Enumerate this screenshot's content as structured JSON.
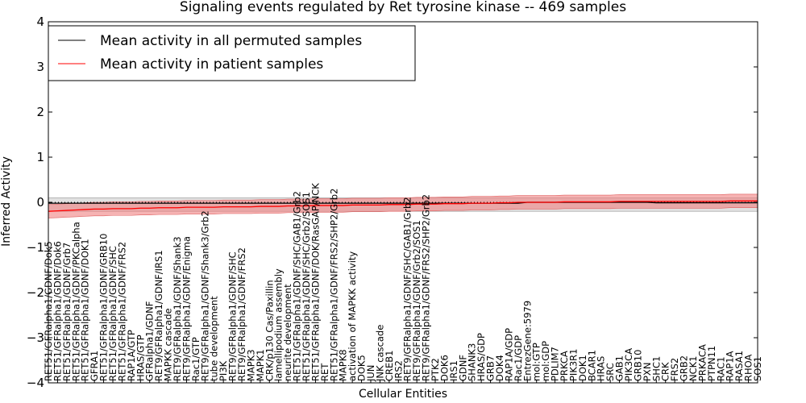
{
  "chart_data": {
    "type": "line",
    "title": "Signaling events regulated by Ret tyrosine kinase -- 469 samples",
    "xlabel": "Cellular Entities",
    "ylabel": "Inferred Activity",
    "ylim": [
      -4,
      4
    ],
    "yticks": [
      -4,
      -3,
      -2,
      -1,
      0,
      1,
      2,
      3,
      4
    ],
    "categories": [
      "RET51/GFRalpha1/GDNF/Dok5",
      "RET51/GFRalpha1/GDNF/Dok6",
      "RET51/GFRalpha1/GDNF/Grb7",
      "RET51/GFRalpha1/GDNF/PKCalpha",
      "RET51/GFRalpha1/GDNF/DOK1",
      "GFRA1",
      "RET51/GFRalpha1/GDNF/GRB10",
      "RET51/GFRalpha1/GDNF/SHC",
      "RET51/GFRalpha1/GDNF/FRS2",
      "RAP1A/GTP",
      "HRAS/GTP",
      "GFRalpha1/GDNF",
      "RET9/GFRalpha1/GDNF/IRS1",
      "MAPKK cascade",
      "RET9/GFRalpha1/GDNF/Shank3",
      "RET9/GFRalpha1/GDNF/Enigma",
      "Rac1/GTP",
      "RET9/GFRalpha1/GDNF/Shank3/Grb2",
      "tube development",
      "PI3K",
      "RET9/GFRalpha1/GDNF/SHC",
      "RET9/GFRalpha1/GDNF/FRS2",
      "MAPK3",
      "MAPK1",
      "CRK/p130 Cas/Paxillin",
      "lamellipodium assembly",
      "neurite development",
      "RET51/GFRalpha1/GDNF/SHC/GAB1/Grb2",
      "RET51/GFRalpha1/GDNF/SHC/Grb2/SOS1",
      "RET51/GFRalpha1/GDNF/DOK/RasGAP/NCK",
      "RET",
      "RET51/GFRalpha1/GDNF/FRS2/SHP2/Grb2",
      "MAPK8",
      "activation of MAPKK activity",
      "DOK5",
      "JUN",
      "JNK cascade",
      "CREB1",
      "IRS2",
      "RET9/GFRalpha1/GDNF/SHC/GAB1/Grb2",
      "RET9/GFRalpha1/GDNF/Grb2/SOS1",
      "RET9/GFRalpha1/GDNF/FRS2/SHP2/Grb2",
      "PTK2",
      "DOK6",
      "IRS1",
      "GDNF",
      "SHANK3",
      "HRAS/GDP",
      "GRB7",
      "DOK4",
      "RAP1A/GDP",
      "Rac1/GDP",
      "EntrezGene:5979",
      "mol:GTP",
      "mol:GDP",
      "PDLIM7",
      "PRKCA",
      "PIK3R1",
      "DOK1",
      "BCAR1",
      "HRAS",
      "SRC",
      "GAB1",
      "PIK3CA",
      "GRB10",
      "PXN",
      "SHC1",
      "CRK",
      "FRS2",
      "GRB2",
      "NCK1",
      "PRKACA",
      "PTPN11",
      "RAC1",
      "RAP1A",
      "RASA1",
      "RHOA",
      "SOS1"
    ],
    "series": [
      {
        "name": "Mean activity in all permuted samples",
        "color": "#000000",
        "values": [
          -0.02,
          -0.02,
          -0.02,
          -0.02,
          -0.02,
          -0.02,
          -0.02,
          -0.02,
          -0.02,
          -0.02,
          -0.02,
          -0.02,
          -0.02,
          -0.02,
          -0.02,
          -0.02,
          -0.02,
          -0.02,
          -0.02,
          -0.02,
          -0.02,
          -0.02,
          -0.02,
          -0.02,
          -0.02,
          -0.02,
          -0.02,
          -0.02,
          -0.02,
          -0.02,
          -0.02,
          -0.02,
          -0.02,
          -0.02,
          -0.02,
          -0.02,
          -0.02,
          -0.02,
          -0.02,
          -0.02,
          -0.02,
          -0.02,
          -0.02,
          -0.02,
          -0.02,
          -0.02,
          -0.02,
          -0.02,
          -0.02,
          -0.02,
          -0.02,
          -0.02,
          0,
          0,
          0,
          0,
          0,
          0,
          0,
          0,
          0,
          0,
          0,
          0,
          0,
          0,
          -0.01,
          -0.01,
          -0.01,
          -0.01,
          -0.01,
          -0.01,
          -0.01,
          -0.01,
          -0.01,
          -0.01,
          -0.01,
          -0.01
        ]
      },
      {
        "name": "Mean activity in patient samples",
        "color": "#ff0000",
        "values": [
          -0.2,
          -0.19,
          -0.18,
          -0.17,
          -0.16,
          -0.15,
          -0.15,
          -0.14,
          -0.14,
          -0.14,
          -0.13,
          -0.13,
          -0.12,
          -0.12,
          -0.12,
          -0.11,
          -0.11,
          -0.11,
          -0.11,
          -0.1,
          -0.1,
          -0.1,
          -0.1,
          -0.09,
          -0.09,
          -0.09,
          -0.08,
          -0.08,
          -0.08,
          -0.07,
          -0.07,
          -0.07,
          -0.07,
          -0.06,
          -0.06,
          -0.06,
          -0.06,
          -0.05,
          -0.05,
          -0.05,
          -0.04,
          -0.04,
          -0.04,
          -0.03,
          -0.03,
          -0.03,
          -0.02,
          -0.02,
          -0.02,
          -0.01,
          -0.01,
          0,
          0,
          0,
          0,
          0,
          0.01,
          0.01,
          0.01,
          0.01,
          0.01,
          0.01,
          0.02,
          0.02,
          0.02,
          0.02,
          0.02,
          0.02,
          0.02,
          0.02,
          0.02,
          0.02,
          0.02,
          0.02,
          0.03,
          0.03,
          0.03,
          0.03
        ]
      }
    ],
    "permuted_band": {
      "lower": -0.2,
      "upper": 0.1
    },
    "patient_band_halfwidth": 0.15,
    "reference_line": 0,
    "legend": {
      "location": "top-left",
      "entries": [
        "Mean activity in all permuted samples",
        "Mean activity in patient samples"
      ]
    },
    "colors": {
      "patient_band": "#f08080",
      "permuted_band": "#c8c8c8",
      "reference": "#000000"
    }
  }
}
